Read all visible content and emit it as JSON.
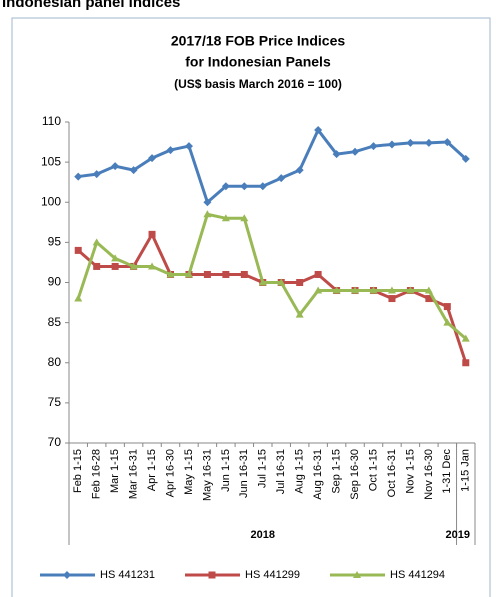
{
  "heading": "Indonesian panel indices",
  "chart_data": {
    "type": "line",
    "title": [
      "2017/18 FOB Price Indices",
      "for Indonesian Panels"
    ],
    "subtitle": "(US$ basis March 2016 = 100)",
    "categories": [
      "Feb 1-15",
      "Feb 16-28",
      "Mar 1-15",
      "Mar 16-31",
      "Apr 1-15",
      "Apr 16-30",
      "May 1-15",
      "May 16-31",
      "Jun 1-15",
      "Jun 16-31",
      "Jul 1-15",
      "Jul 16-31",
      "Aug 1-15",
      "Aug 16-31",
      "Sep 1-15",
      "Sep 16-30",
      "Oct 1-15",
      "Oct 16-31",
      "Nov 1-15",
      "Nov 16-30",
      "1-31 Dec",
      "1-15 Jan"
    ],
    "year_labels": [
      "2018",
      "2019"
    ],
    "series": [
      {
        "name": "HS 441231",
        "color": "#4a7ebb",
        "values": [
          103.2,
          103.5,
          104.5,
          104,
          105.5,
          106.5,
          107,
          100,
          102,
          102,
          102,
          103,
          104,
          109,
          106,
          106.3,
          107,
          107.2,
          107.4,
          107.4,
          107.5,
          105.4
        ]
      },
      {
        "name": "HS 441299",
        "color": "#be4b48",
        "values": [
          94,
          92,
          92,
          92,
          96,
          91,
          91,
          91,
          91,
          91,
          90,
          90,
          90,
          91,
          89,
          89,
          89,
          88,
          89,
          88,
          87,
          80
        ]
      },
      {
        "name": "HS 441294",
        "color": "#98b954",
        "values": [
          88,
          95,
          93,
          92,
          92,
          91,
          91,
          98.5,
          98,
          98,
          90,
          90,
          86,
          89,
          89,
          89,
          89,
          89,
          89,
          89,
          85,
          83
        ]
      }
    ],
    "ylim": [
      70,
      110
    ],
    "yticks": [
      70,
      75,
      80,
      85,
      90,
      95,
      100,
      105,
      110
    ],
    "grid": false
  }
}
